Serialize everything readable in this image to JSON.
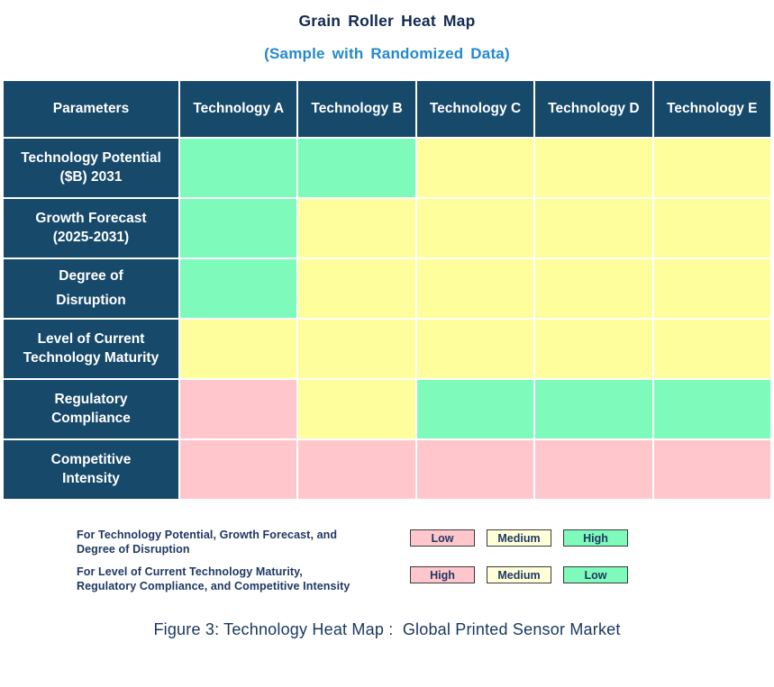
{
  "colors": {
    "header_bg": "#17496B",
    "green": "#7EFBBA",
    "yellow": "#FEFE9D",
    "pink": "#FFC6CB",
    "legend_yellow": "#FFFFD8",
    "title_navy": "#132A52",
    "subtitle_blue": "#2389CD",
    "legend_text_navy": "#1F3864",
    "caption_navy": "#17375E",
    "white_text": "#FFFFFF"
  },
  "chart_data": {
    "type": "heatmap",
    "title": "Grain Roller Heat Map",
    "subtitle": "(Sample with Randomized Data)",
    "columns": [
      "Parameters",
      "Technology A",
      "Technology B",
      "Technology C",
      "Technology D",
      "Technology E"
    ],
    "rows": [
      {
        "label": "Technology Potential ($B) 2031",
        "label_lines": [
          "Technology Potential",
          "($B) 2031"
        ],
        "spaced": false,
        "cells": [
          "green",
          "green",
          "yellow",
          "yellow",
          "yellow"
        ],
        "levels": [
          "High",
          "High",
          "Medium",
          "Medium",
          "Medium"
        ]
      },
      {
        "label": "Growth Forecast (2025-2031)",
        "label_lines": [
          "Growth Forecast",
          "(2025-2031)"
        ],
        "spaced": false,
        "cells": [
          "green",
          "yellow",
          "yellow",
          "yellow",
          "yellow"
        ],
        "levels": [
          "High",
          "Medium",
          "Medium",
          "Medium",
          "Medium"
        ]
      },
      {
        "label": "Degree of Disruption",
        "label_lines": [
          "Degree of",
          "Disruption"
        ],
        "spaced": true,
        "cells": [
          "green",
          "yellow",
          "yellow",
          "yellow",
          "yellow"
        ],
        "levels": [
          "High",
          "Medium",
          "Medium",
          "Medium",
          "Medium"
        ]
      },
      {
        "label": "Level of Current Technology Maturity",
        "label_lines": [
          "Level of Current",
          "Technology Maturity"
        ],
        "spaced": false,
        "cells": [
          "yellow",
          "yellow",
          "yellow",
          "yellow",
          "yellow"
        ],
        "levels": [
          "Medium",
          "Medium",
          "Medium",
          "Medium",
          "Medium"
        ]
      },
      {
        "label": "Regulatory Compliance",
        "label_lines": [
          "Regulatory",
          "Compliance"
        ],
        "spaced": false,
        "cells": [
          "pink",
          "yellow",
          "green",
          "green",
          "green"
        ],
        "levels": [
          "High",
          "Medium",
          "Low",
          "Low",
          "Low"
        ]
      },
      {
        "label": "Competitive Intensity",
        "label_lines": [
          "Competitive",
          "Intensity"
        ],
        "spaced": false,
        "cells": [
          "pink",
          "pink",
          "pink",
          "pink",
          "pink"
        ],
        "levels": [
          "High",
          "High",
          "High",
          "High",
          "High"
        ]
      }
    ],
    "legend": {
      "groups": [
        {
          "text_lines": [
            "For Technology Potential, Growth Forecast, and",
            "Degree of Disruption"
          ],
          "items": [
            {
              "label": "Low",
              "color": "pink"
            },
            {
              "label": "Medium",
              "color": "legend_yellow"
            },
            {
              "label": "High",
              "color": "green"
            }
          ]
        },
        {
          "text_lines": [
            "For Level of Current Technology Maturity,",
            "Regulatory Compliance, and Competitive Intensity"
          ],
          "items": [
            {
              "label": "High",
              "color": "pink"
            },
            {
              "label": "Medium",
              "color": "legend_yellow"
            },
            {
              "label": "Low",
              "color": "green"
            }
          ]
        }
      ]
    },
    "layout": {
      "grid": false,
      "legend_position": "bottom-left-of-caption"
    }
  },
  "caption": "Figure 3: Technology Heat Map :  Global Printed Sensor Market"
}
